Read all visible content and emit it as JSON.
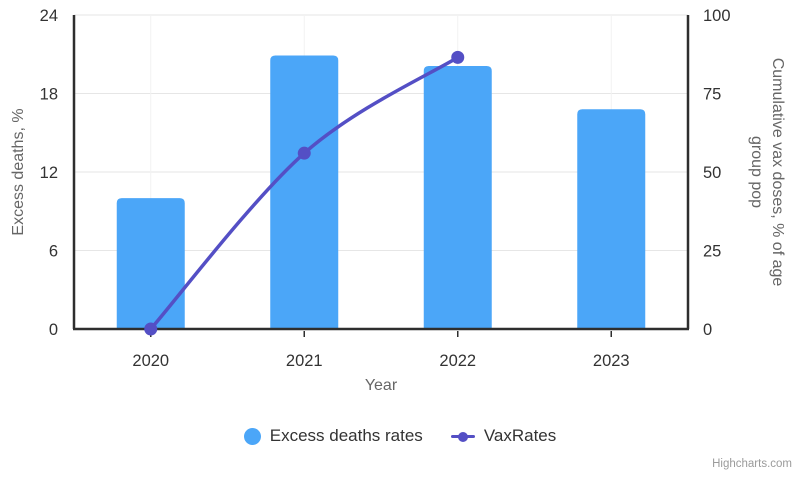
{
  "chart_data": {
    "type": "combo-column-line",
    "title": "",
    "categories": [
      "2020",
      "2021",
      "2022",
      "2023"
    ],
    "series": [
      {
        "name": "Excess deaths rates",
        "type": "column",
        "axis": "left",
        "color": "#4BA6F8",
        "values": [
          10,
          20.9,
          20.1,
          16.8
        ]
      },
      {
        "name": "VaxRates",
        "type": "spline",
        "axis": "right",
        "color": "#544FC5",
        "values": [
          0,
          56,
          86.5,
          null
        ]
      }
    ],
    "xlabel": "Year",
    "y_left": {
      "label": "Excess deaths, %",
      "min": 0,
      "max": 24,
      "ticks": [
        0,
        6,
        12,
        18,
        24
      ]
    },
    "y_right": {
      "label": "Cumulative vax doses, % of age group pop",
      "min": 0,
      "max": 100,
      "ticks": [
        0,
        25,
        50,
        75,
        100
      ]
    },
    "grid": true,
    "legend_position": "bottom"
  },
  "colors": {
    "bar": "#4BA6F8",
    "line": "#544FC5",
    "axis": "#2E2E2E",
    "grid": "#E6E6E6",
    "grid_faint": "#F2F2F2",
    "tick_text": "#333333",
    "title_text": "#666666",
    "credits_text": "#9B9B9B"
  },
  "credits": {
    "label": "Highcharts.com"
  }
}
